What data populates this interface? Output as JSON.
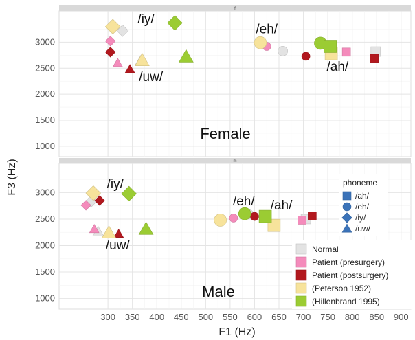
{
  "chart_data": {
    "type": "scatter",
    "xlabel": "F1 (Hz)",
    "ylabel": "F3 (Hz)",
    "xlim": [
      200,
      920
    ],
    "xticks": [
      300,
      350,
      400,
      450,
      500,
      550,
      600,
      650,
      700,
      750,
      800,
      850,
      900
    ],
    "yticks": [
      1000,
      1500,
      2000,
      2500,
      3000
    ],
    "grid": true,
    "legend_shape_title": "phoneme",
    "legend_shapes": [
      {
        "label": "/ah/",
        "shape": "square"
      },
      {
        "label": "/eh/",
        "shape": "circle"
      },
      {
        "label": "/iy/",
        "shape": "diamond"
      },
      {
        "label": "/uw/",
        "shape": "triangle"
      }
    ],
    "legend_sources": [
      {
        "label": "Normal",
        "color": "#e3e3e3"
      },
      {
        "label": "Patient (presurgery)",
        "color": "#f48bbb"
      },
      {
        "label": "Patient (postsurgery)",
        "color": "#b2181e"
      },
      {
        "label": "(Peterson 1952)",
        "color": "#f7e39b"
      },
      {
        "label": "(Hillenbrand 1995)",
        "color": "#9bcc33"
      }
    ],
    "panels": [
      {
        "strip": "f",
        "label": "Female",
        "ylim": [
          800,
          3600
        ],
        "vowel_labels": [
          {
            "text": "/iy/",
            "x": 378,
            "y": 3360
          },
          {
            "text": "/uw/",
            "x": 388,
            "y": 2250
          },
          {
            "text": "/eh/",
            "x": 625,
            "y": 3170
          },
          {
            "text": "/ah/",
            "x": 770,
            "y": 2450
          }
        ],
        "points": [
          {
            "phoneme": "/iy/",
            "source": "Normal",
            "x": 330,
            "y": 3220
          },
          {
            "phoneme": "/iy/",
            "source": "Patient (presurgery)",
            "x": 305,
            "y": 3020
          },
          {
            "phoneme": "/iy/",
            "source": "Patient (postsurgery)",
            "x": 305,
            "y": 2810
          },
          {
            "phoneme": "/iy/",
            "source": "(Peterson 1952)",
            "x": 310,
            "y": 3300
          },
          {
            "phoneme": "/iy/",
            "source": "(Hillenbrand 1995)",
            "x": 437,
            "y": 3370
          },
          {
            "phoneme": "/uw/",
            "source": "Normal",
            "x": 367,
            "y": 2640
          },
          {
            "phoneme": "/uw/",
            "source": "Patient (presurgery)",
            "x": 320,
            "y": 2600
          },
          {
            "phoneme": "/uw/",
            "source": "Patient (postsurgery)",
            "x": 345,
            "y": 2480
          },
          {
            "phoneme": "/uw/",
            "source": "(Peterson 1952)",
            "x": 370,
            "y": 2650
          },
          {
            "phoneme": "/uw/",
            "source": "(Hillenbrand 1995)",
            "x": 460,
            "y": 2720
          },
          {
            "phoneme": "/eh/",
            "source": "Normal",
            "x": 658,
            "y": 2830
          },
          {
            "phoneme": "/eh/",
            "source": "Patient (presurgery)",
            "x": 625,
            "y": 2920
          },
          {
            "phoneme": "/eh/",
            "source": "Patient (postsurgery)",
            "x": 705,
            "y": 2730
          },
          {
            "phoneme": "/eh/",
            "source": "(Peterson 1952)",
            "x": 612,
            "y": 2990
          },
          {
            "phoneme": "/eh/",
            "source": "(Hillenbrand 1995)",
            "x": 735,
            "y": 2980
          },
          {
            "phoneme": "/ah/",
            "source": "Normal",
            "x": 848,
            "y": 2820
          },
          {
            "phoneme": "/ah/",
            "source": "Patient (presurgery)",
            "x": 788,
            "y": 2810
          },
          {
            "phoneme": "/ah/",
            "source": "Patient (postsurgery)",
            "x": 845,
            "y": 2690
          },
          {
            "phoneme": "/ah/",
            "source": "(Peterson 1952)",
            "x": 757,
            "y": 2780
          },
          {
            "phoneme": "/ah/",
            "source": "(Hillenbrand 1995)",
            "x": 755,
            "y": 2920
          }
        ]
      },
      {
        "strip": "m",
        "label": "Male",
        "ylim": [
          800,
          3550
        ],
        "vowel_labels": [
          {
            "text": "/iy/",
            "x": 315,
            "y": 3080
          },
          {
            "text": "/uw/",
            "x": 320,
            "y": 1930
          },
          {
            "text": "/eh/",
            "x": 578,
            "y": 2760
          },
          {
            "text": "/ah/",
            "x": 655,
            "y": 2680
          }
        ],
        "points": [
          {
            "phoneme": "/iy/",
            "source": "Normal",
            "x": 265,
            "y": 2830
          },
          {
            "phoneme": "/iy/",
            "source": "Patient (presurgery)",
            "x": 255,
            "y": 2760
          },
          {
            "phoneme": "/iy/",
            "source": "Patient (postsurgery)",
            "x": 283,
            "y": 2850
          },
          {
            "phoneme": "/iy/",
            "source": "(Peterson 1952)",
            "x": 270,
            "y": 2990
          },
          {
            "phoneme": "/iy/",
            "source": "(Hillenbrand 1995)",
            "x": 343,
            "y": 2980
          },
          {
            "phoneme": "/uw/",
            "source": "Normal",
            "x": 280,
            "y": 2260
          },
          {
            "phoneme": "/uw/",
            "source": "Patient (presurgery)",
            "x": 272,
            "y": 2310
          },
          {
            "phoneme": "/uw/",
            "source": "Patient (postsurgery)",
            "x": 322,
            "y": 2220
          },
          {
            "phoneme": "/uw/",
            "source": "(Peterson 1952)",
            "x": 302,
            "y": 2240
          },
          {
            "phoneme": "/uw/",
            "source": "(Hillenbrand 1995)",
            "x": 378,
            "y": 2310
          },
          {
            "phoneme": "/eh/",
            "source": "Normal",
            "x": 588,
            "y": 2590
          },
          {
            "phoneme": "/eh/",
            "source": "Patient (presurgery)",
            "x": 557,
            "y": 2520
          },
          {
            "phoneme": "/eh/",
            "source": "Patient (postsurgery)",
            "x": 600,
            "y": 2550
          },
          {
            "phoneme": "/eh/",
            "source": "(Peterson 1952)",
            "x": 530,
            "y": 2480
          },
          {
            "phoneme": "/eh/",
            "source": "(Hillenbrand 1995)",
            "x": 580,
            "y": 2600
          },
          {
            "phoneme": "/ah/",
            "source": "Normal",
            "x": 705,
            "y": 2500
          },
          {
            "phoneme": "/ah/",
            "source": "Patient (presurgery)",
            "x": 697,
            "y": 2480
          },
          {
            "phoneme": "/ah/",
            "source": "Patient (postsurgery)",
            "x": 718,
            "y": 2560
          },
          {
            "phoneme": "/ah/",
            "source": "(Peterson 1952)",
            "x": 640,
            "y": 2380
          },
          {
            "phoneme": "/ah/",
            "source": "(Hillenbrand 1995)",
            "x": 622,
            "y": 2550
          }
        ]
      }
    ]
  }
}
